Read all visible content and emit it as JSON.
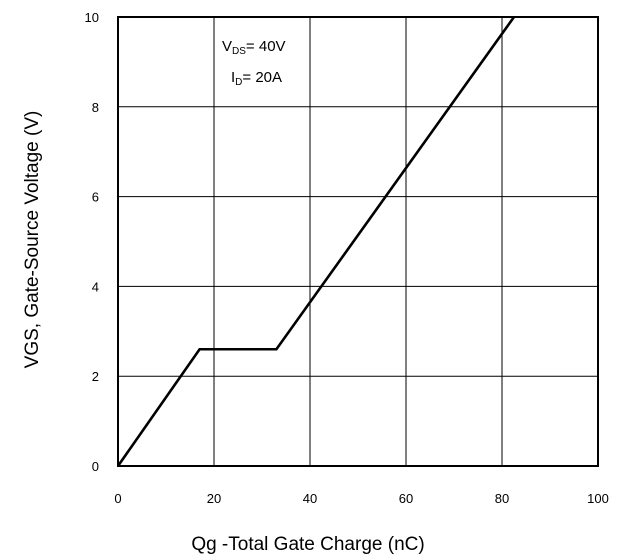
{
  "chart_data": {
    "type": "line",
    "title": "",
    "xlabel": "Qg -Total Gate Charge (nC)",
    "ylabel": "VGS, Gate-Source Voltage (V)",
    "xlim": [
      0,
      100
    ],
    "ylim": [
      0,
      10
    ],
    "xticks": [
      "0",
      "20",
      "40",
      "60",
      "80",
      "100"
    ],
    "yticks": [
      "0",
      "2",
      "4",
      "6",
      "8",
      "10"
    ],
    "grid": true,
    "series": [
      {
        "x": [
          0,
          17,
          33,
          82.5
        ],
        "y": [
          0,
          2.6,
          2.6,
          10
        ]
      }
    ],
    "annotations": {
      "vds": {
        "main": "V",
        "sub": "DS",
        "rest": "= 40V"
      },
      "id": {
        "main": "I",
        "sub": "D",
        "rest": "= 20A"
      }
    },
    "line_color": "#000000"
  }
}
